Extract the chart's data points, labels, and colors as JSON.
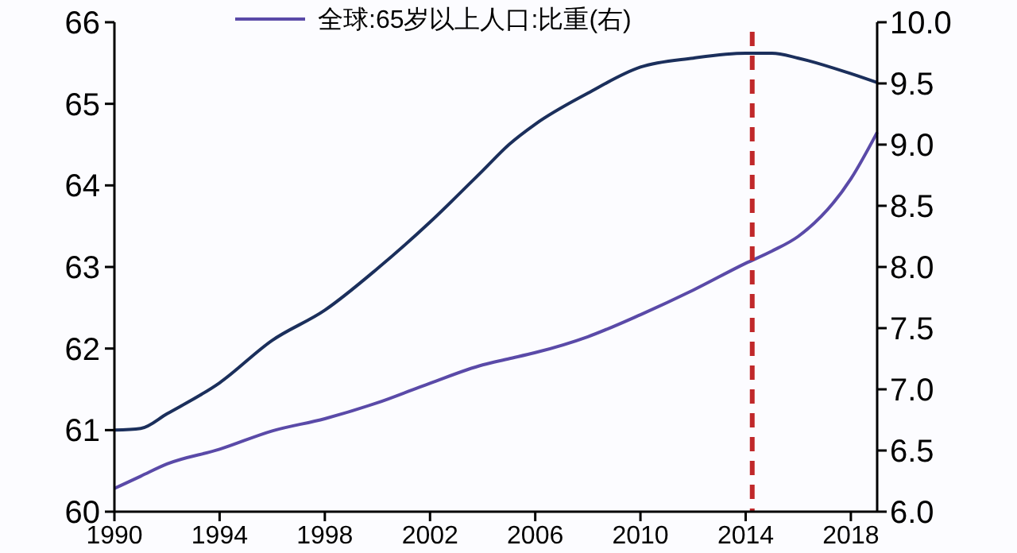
{
  "chart_data": {
    "type": "line",
    "x": [
      1990,
      1991,
      1992,
      1994,
      1996,
      1998,
      2000,
      2002,
      2004,
      2005,
      2006,
      2008,
      2010,
      2012,
      2014,
      2015,
      2016,
      2018,
      2019
    ],
    "series": [
      {
        "color": "#1b2f5c",
        "values": [
          61.0,
          61.02,
          61.2,
          61.58,
          62.1,
          62.47,
          62.98,
          63.55,
          64.18,
          64.5,
          64.75,
          65.13,
          65.45,
          65.56,
          65.62,
          65.62,
          65.56,
          65.37,
          65.26
        ]
      },
      {
        "name": "全球:65岁以上人口:比重(右)",
        "color": "#5a4aa8",
        "axis": "y2",
        "values": [
          6.19,
          6.29,
          6.39,
          6.51,
          6.66,
          6.76,
          6.89,
          7.05,
          7.2,
          7.25,
          7.3,
          7.43,
          7.61,
          7.81,
          8.03,
          8.13,
          8.25,
          8.72,
          9.1
        ]
      }
    ],
    "xlim": [
      1990,
      2019
    ],
    "xticks": [
      1990,
      1994,
      1998,
      2002,
      2006,
      2010,
      2014,
      2018
    ],
    "ylim": [
      60,
      66
    ],
    "yticks": [
      60,
      61,
      62,
      63,
      64,
      65,
      66
    ],
    "y2lim": [
      6,
      10
    ],
    "y2ticks": [
      {
        "value": 6,
        "label": "6.0"
      },
      {
        "value": 6.5,
        "label": "6.5"
      },
      {
        "value": 7,
        "label": "7.0"
      },
      {
        "value": 7.5,
        "label": "7.5"
      },
      {
        "value": 8,
        "label": "8.0"
      },
      {
        "value": 8.5,
        "label": "8.5"
      },
      {
        "value": 9,
        "label": "9.0"
      },
      {
        "value": 9.5,
        "label": "9.5"
      },
      {
        "value": 10,
        "label": "10.0"
      }
    ],
    "ref_lines": [
      {
        "axis": "x",
        "value": 2014.25,
        "color": "#c0282a",
        "line_style": "dashed"
      }
    ],
    "legend": "top",
    "grid": false
  }
}
